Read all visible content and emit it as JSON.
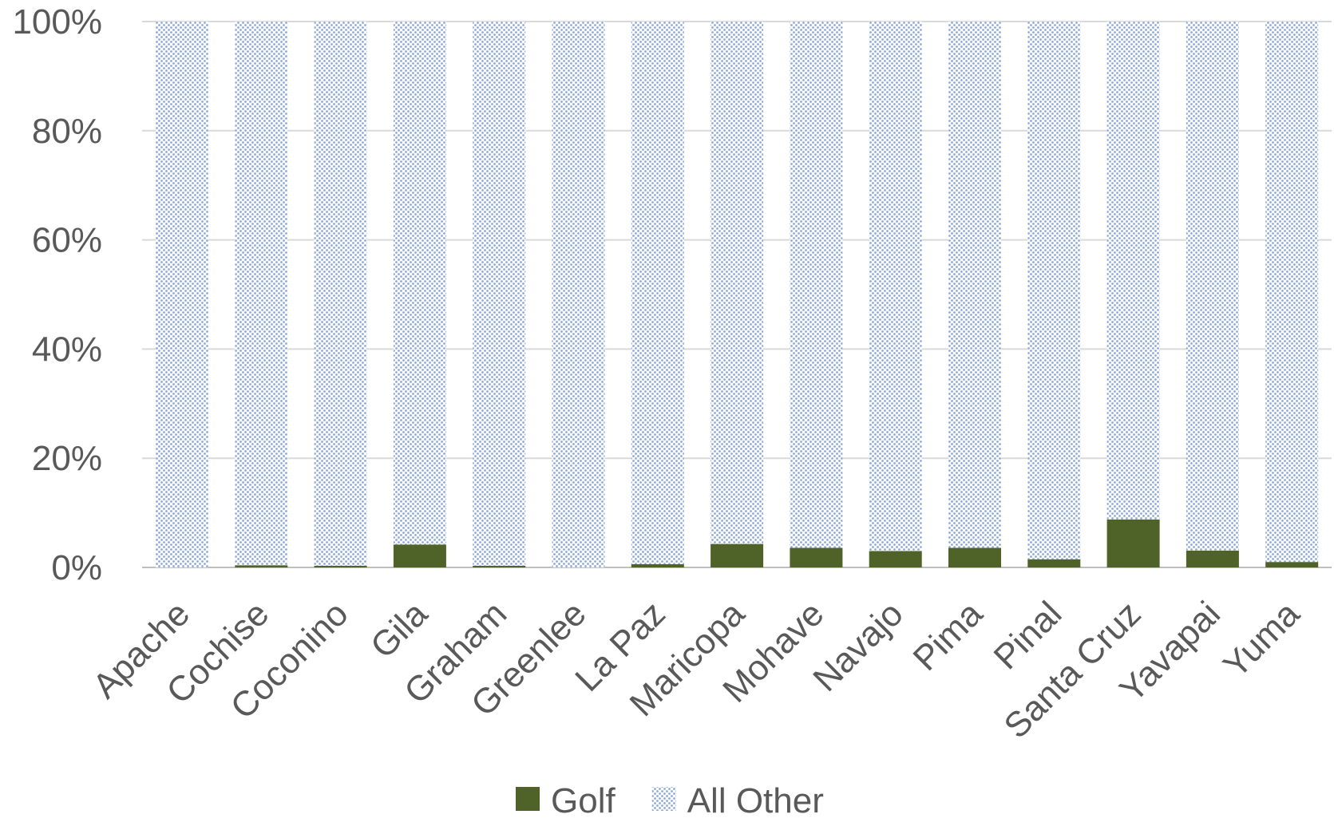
{
  "chart_data": {
    "type": "bar",
    "stacked": true,
    "percent": true,
    "categories": [
      "Apache",
      "Cochise",
      "Coconino",
      "Gila",
      "Graham",
      "Greenlee",
      "La Paz",
      "Maricopa",
      "Mohave",
      "Navajo",
      "Pima",
      "Pinal",
      "Santa Cruz",
      "Yavapai",
      "Yuma"
    ],
    "series": [
      {
        "name": "Golf",
        "color": "#4f6228",
        "values": [
          0.0,
          0.4,
          0.3,
          4.2,
          0.3,
          0.0,
          0.6,
          4.3,
          3.6,
          3.0,
          3.6,
          1.5,
          8.8,
          3.1,
          1.0
        ]
      },
      {
        "name": "All Other",
        "color": "#b4c7e7",
        "pattern": "dotted",
        "values": [
          100.0,
          99.6,
          99.7,
          95.8,
          99.7,
          100.0,
          99.4,
          95.7,
          96.4,
          97.0,
          96.4,
          98.5,
          91.2,
          96.9,
          99.0
        ]
      }
    ],
    "yticks": [
      "0%",
      "20%",
      "40%",
      "60%",
      "80%",
      "100%"
    ],
    "ylim": [
      0,
      100
    ],
    "grid": true,
    "legend": "bottom-center"
  }
}
